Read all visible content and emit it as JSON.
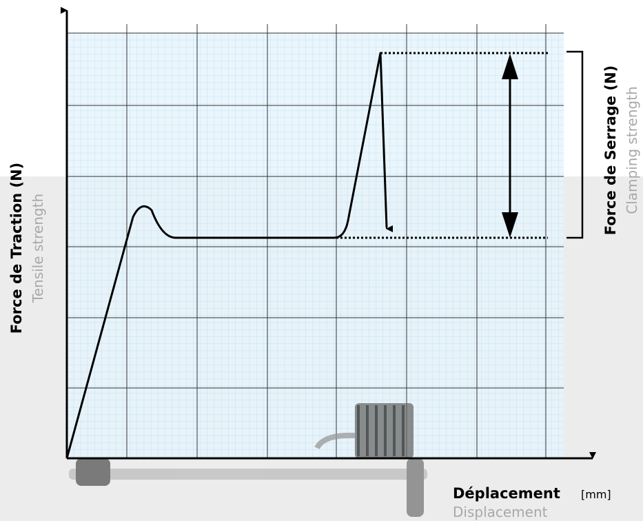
{
  "y_axis": {
    "title": "Force de Traction (N)",
    "subtitle": "Tensile strength"
  },
  "clamping": {
    "title": "Force de Serrage (N)",
    "subtitle": "Clamping strength"
  },
  "x_axis": {
    "title": "Déplacement",
    "unit": "[mm]",
    "subtitle": "Displacement"
  }
}
